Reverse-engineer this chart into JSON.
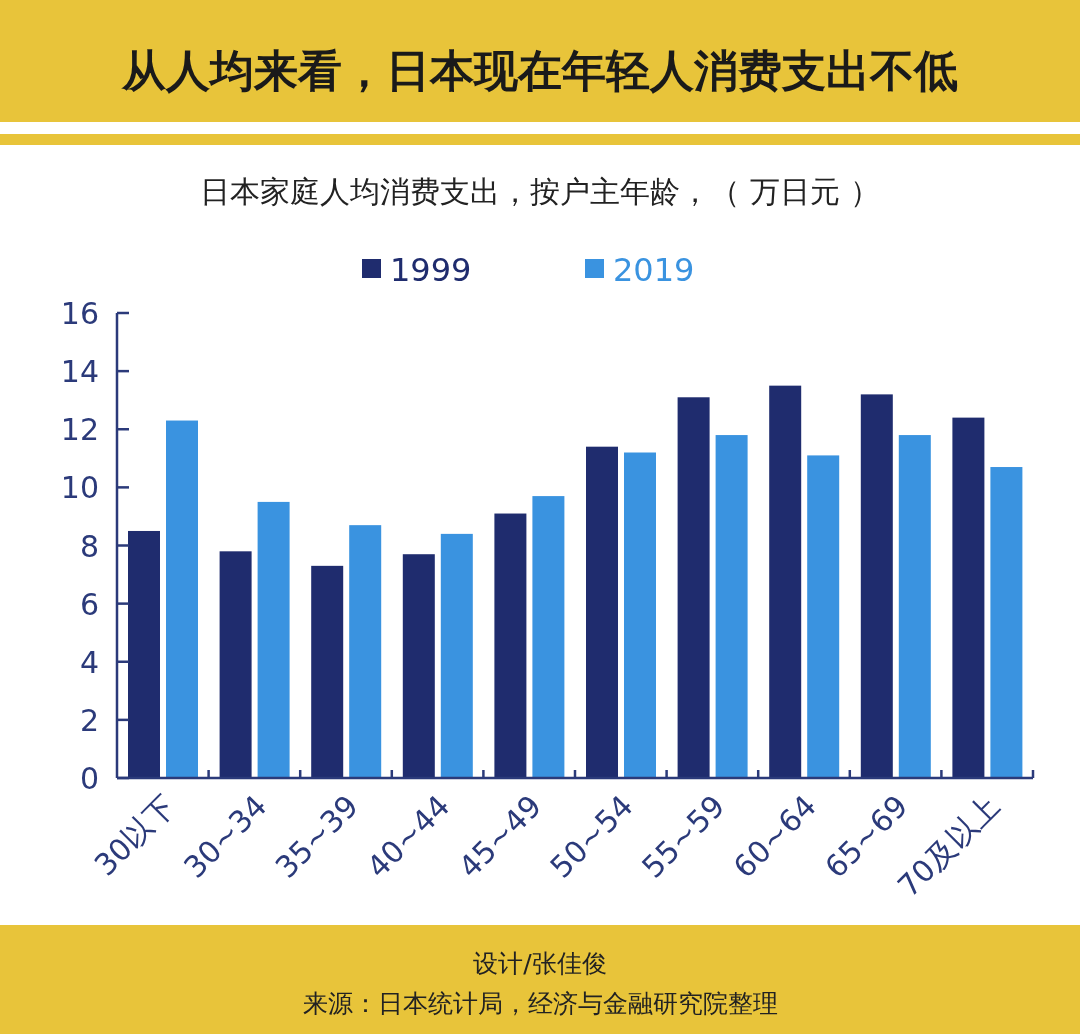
{
  "chart_data": {
    "type": "bar",
    "title": "从人均来看，日本现在年轻人消费支出不低",
    "subtitle": "日本家庭人均消费支出，按户主年龄，（ 万日元 ）",
    "categories": [
      "30以下",
      "30~34",
      "35~39",
      "40~44",
      "45~49",
      "50~54",
      "55~59",
      "60~64",
      "65~69",
      "70及以上"
    ],
    "series": [
      {
        "name": "1999",
        "color": "#1f2c6e",
        "values": [
          8.5,
          7.8,
          7.3,
          7.7,
          9.1,
          11.4,
          13.1,
          13.5,
          13.2,
          12.4
        ]
      },
      {
        "name": "2019",
        "color": "#3a93e0",
        "values": [
          12.3,
          9.5,
          8.7,
          8.4,
          9.7,
          11.2,
          11.8,
          11.1,
          11.8,
          10.7
        ]
      }
    ],
    "ylim": [
      0,
      16
    ],
    "yticks": [
      0,
      2,
      4,
      6,
      8,
      10,
      12,
      14,
      16
    ],
    "grid": false,
    "legend": "top",
    "annotations": [
      "设计/张佳俊",
      "来源：日本统计局，经济与金融研究院整理"
    ]
  }
}
